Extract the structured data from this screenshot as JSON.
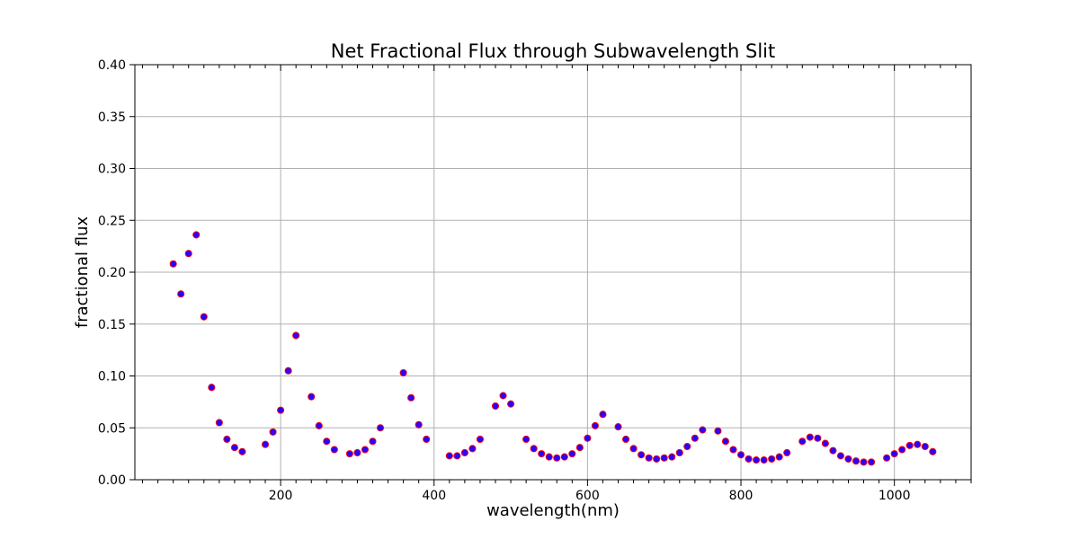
{
  "chart_data": {
    "type": "scatter",
    "title": "Net Fractional Flux through Subwavelength Slit",
    "xlabel": "wavelength(nm)",
    "ylabel": "fractional flux",
    "xlim": [
      10,
      1100
    ],
    "ylim": [
      0.0,
      0.4
    ],
    "x_ticks": [
      200,
      400,
      600,
      800,
      1000
    ],
    "x_tick_labels": [
      "200",
      "400",
      "600",
      "800",
      "1000"
    ],
    "y_ticks": [
      0.0,
      0.05,
      0.1,
      0.15,
      0.2,
      0.25,
      0.3,
      0.35,
      0.4
    ],
    "y_tick_labels": [
      "0.00",
      "0.05",
      "0.10",
      "0.15",
      "0.20",
      "0.25",
      "0.30",
      "0.35",
      "0.40"
    ],
    "grid": true,
    "marker_fill": "#2a00ff",
    "marker_edge": "#ff0000",
    "gridline_color": "#b0b0b0",
    "series": [
      {
        "points": [
          [
            60,
            0.208
          ],
          [
            70,
            0.179
          ],
          [
            80,
            0.218
          ],
          [
            90,
            0.236
          ],
          [
            100,
            0.157
          ],
          [
            110,
            0.089
          ],
          [
            120,
            0.055
          ],
          [
            130,
            0.039
          ],
          [
            140,
            0.031
          ],
          [
            150,
            0.027
          ],
          [
            180,
            0.034
          ],
          [
            190,
            0.046
          ],
          [
            200,
            0.067
          ],
          [
            210,
            0.105
          ],
          [
            220,
            0.139
          ],
          [
            240,
            0.08
          ],
          [
            250,
            0.052
          ],
          [
            260,
            0.037
          ],
          [
            270,
            0.029
          ],
          [
            290,
            0.025
          ],
          [
            300,
            0.026
          ],
          [
            310,
            0.029
          ],
          [
            320,
            0.037
          ],
          [
            330,
            0.05
          ],
          [
            360,
            0.103
          ],
          [
            370,
            0.079
          ],
          [
            380,
            0.053
          ],
          [
            390,
            0.039
          ],
          [
            420,
            0.023
          ],
          [
            430,
            0.023
          ],
          [
            440,
            0.026
          ],
          [
            450,
            0.03
          ],
          [
            460,
            0.039
          ],
          [
            480,
            0.071
          ],
          [
            490,
            0.081
          ],
          [
            500,
            0.073
          ],
          [
            520,
            0.039
          ],
          [
            530,
            0.03
          ],
          [
            540,
            0.025
          ],
          [
            550,
            0.022
          ],
          [
            560,
            0.021
          ],
          [
            570,
            0.022
          ],
          [
            580,
            0.025
          ],
          [
            590,
            0.031
          ],
          [
            600,
            0.04
          ],
          [
            610,
            0.052
          ],
          [
            620,
            0.063
          ],
          [
            640,
            0.051
          ],
          [
            650,
            0.039
          ],
          [
            660,
            0.03
          ],
          [
            670,
            0.024
          ],
          [
            680,
            0.021
          ],
          [
            690,
            0.02
          ],
          [
            700,
            0.021
          ],
          [
            710,
            0.022
          ],
          [
            720,
            0.026
          ],
          [
            730,
            0.032
          ],
          [
            740,
            0.04
          ],
          [
            750,
            0.048
          ],
          [
            770,
            0.047
          ],
          [
            780,
            0.037
          ],
          [
            790,
            0.029
          ],
          [
            800,
            0.024
          ],
          [
            810,
            0.02
          ],
          [
            820,
            0.019
          ],
          [
            830,
            0.019
          ],
          [
            840,
            0.02
          ],
          [
            850,
            0.022
          ],
          [
            860,
            0.026
          ],
          [
            880,
            0.037
          ],
          [
            890,
            0.041
          ],
          [
            900,
            0.04
          ],
          [
            910,
            0.035
          ],
          [
            920,
            0.028
          ],
          [
            930,
            0.023
          ],
          [
            940,
            0.02
          ],
          [
            950,
            0.018
          ],
          [
            960,
            0.017
          ],
          [
            970,
            0.017
          ],
          [
            990,
            0.021
          ],
          [
            1000,
            0.025
          ],
          [
            1010,
            0.029
          ],
          [
            1020,
            0.033
          ],
          [
            1030,
            0.034
          ],
          [
            1040,
            0.032
          ],
          [
            1050,
            0.027
          ]
        ]
      }
    ]
  }
}
